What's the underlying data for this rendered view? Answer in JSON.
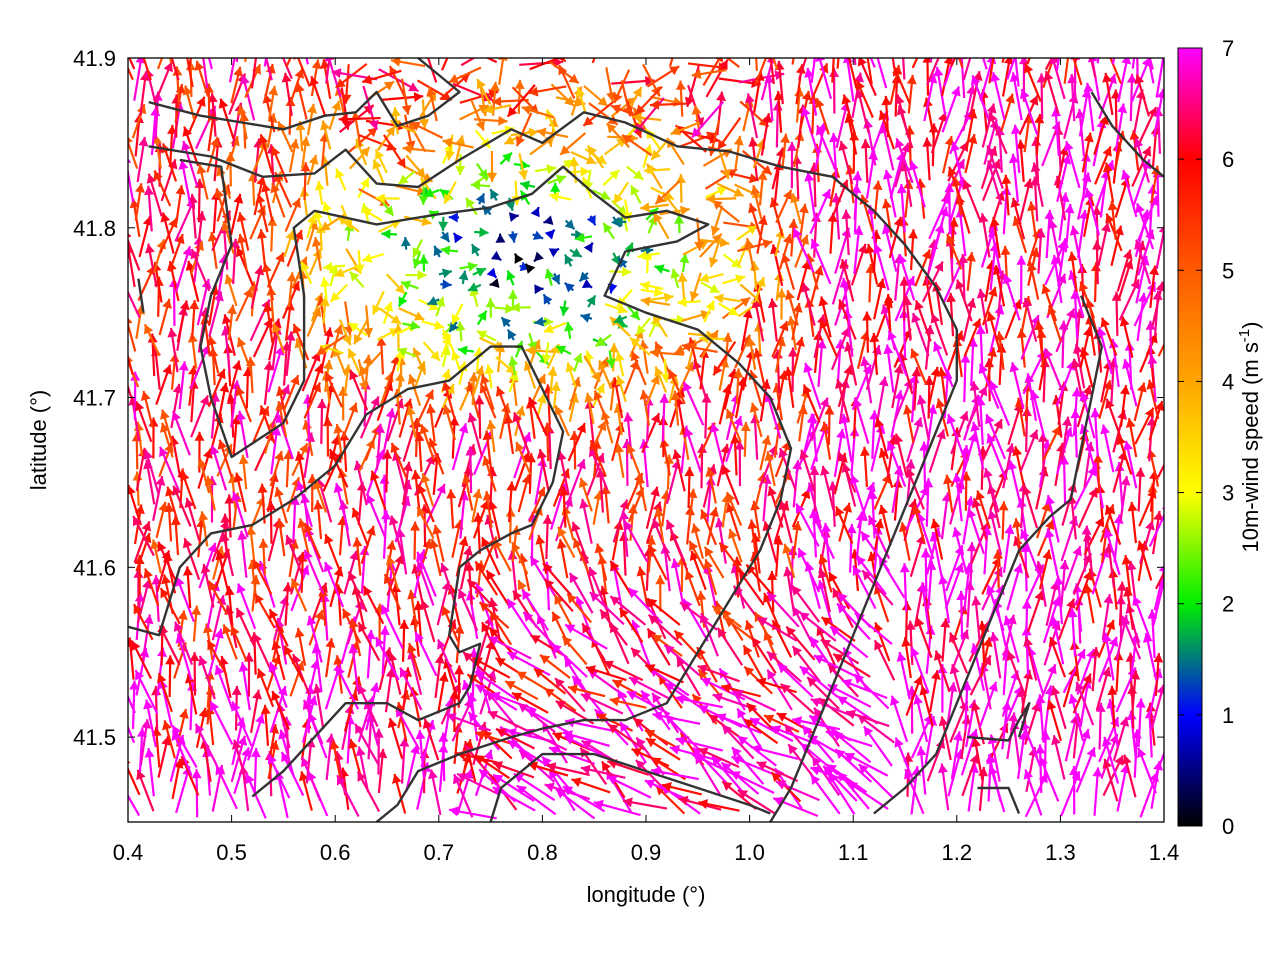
{
  "chart_data": {
    "type": "vector_field",
    "xlabel": "longitude (°)",
    "ylabel": "latitude (°)",
    "colorbar_label": "10m-wind speed (m s-1)",
    "colorbar_label_parts": {
      "main": "10m-wind speed (m s",
      "sup": "-1",
      "end": ")"
    },
    "xlim": [
      0.4,
      1.4
    ],
    "ylim": [
      41.45,
      41.9
    ],
    "x_ticks": [
      0.4,
      0.5,
      0.6,
      0.7,
      0.8,
      0.9,
      1.0,
      1.1,
      1.2,
      1.3,
      1.4
    ],
    "x_tick_labels": [
      "0.4",
      "0.5",
      "0.6",
      "0.7",
      "0.8",
      "0.9",
      "1.0",
      "1.1",
      "1.2",
      "1.3",
      "1.4"
    ],
    "y_ticks": [
      41.5,
      41.6,
      41.7,
      41.8,
      41.9
    ],
    "y_tick_labels": [
      "41.5",
      "41.6",
      "41.7",
      "41.8",
      "41.9"
    ],
    "colorbar_range": [
      0,
      7
    ],
    "colorbar_ticks": [
      0,
      1,
      2,
      3,
      4,
      5,
      6,
      7
    ],
    "colorbar_tick_labels": [
      "0",
      "1",
      "2",
      "3",
      "4",
      "5",
      "6",
      "7"
    ],
    "colormap": [
      {
        "value": 0,
        "color": "#000000"
      },
      {
        "value": 1,
        "color": "#0000ff"
      },
      {
        "value": 2,
        "color": "#00ee00"
      },
      {
        "value": 3,
        "color": "#ffff00"
      },
      {
        "value": 4,
        "color": "#ffa500"
      },
      {
        "value": 5,
        "color": "#ff5a00"
      },
      {
        "value": 6,
        "color": "#ff0000"
      },
      {
        "value": 7,
        "color": "#ff00ff"
      }
    ],
    "contour_color": "#333333",
    "contours": [
      [
        [
          0.42,
          41.874
        ],
        [
          0.47,
          41.866
        ],
        [
          0.51,
          41.862
        ],
        [
          0.55,
          41.858
        ],
        [
          0.59,
          41.866
        ],
        [
          0.62,
          41.868
        ],
        [
          0.64,
          41.88
        ],
        [
          0.66,
          41.86
        ],
        [
          0.69,
          41.866
        ],
        [
          0.72,
          41.88
        ],
        [
          0.7,
          41.89
        ],
        [
          0.68,
          41.9
        ]
      ],
      [
        [
          0.42,
          41.848
        ],
        [
          0.48,
          41.842
        ],
        [
          0.53,
          41.83
        ],
        [
          0.58,
          41.832
        ],
        [
          0.61,
          41.846
        ],
        [
          0.64,
          41.826
        ],
        [
          0.68,
          41.824
        ],
        [
          0.72,
          41.84
        ],
        [
          0.77,
          41.858
        ],
        [
          0.8,
          41.85
        ],
        [
          0.84,
          41.868
        ],
        [
          0.88,
          41.862
        ],
        [
          0.93,
          41.848
        ],
        [
          0.98,
          41.845
        ],
        [
          1.03,
          41.836
        ],
        [
          1.08,
          41.83
        ],
        [
          1.12,
          41.81
        ],
        [
          1.15,
          41.79
        ],
        [
          1.18,
          41.765
        ],
        [
          1.2,
          41.74
        ],
        [
          1.2,
          41.71
        ],
        [
          1.18,
          41.68
        ],
        [
          1.16,
          41.65
        ],
        [
          1.14,
          41.62
        ],
        [
          1.12,
          41.59
        ],
        [
          1.1,
          41.56
        ],
        [
          1.08,
          41.53
        ],
        [
          1.06,
          41.5
        ],
        [
          1.04,
          41.47
        ],
        [
          1.02,
          41.45
        ]
      ],
      [
        [
          0.45,
          41.84
        ],
        [
          0.49,
          41.836
        ],
        [
          0.5,
          41.79
        ],
        [
          0.48,
          41.76
        ],
        [
          0.47,
          41.73
        ],
        [
          0.48,
          41.7
        ],
        [
          0.5,
          41.665
        ],
        [
          0.55,
          41.685
        ],
        [
          0.57,
          41.71
        ],
        [
          0.57,
          41.76
        ],
        [
          0.56,
          41.8
        ],
        [
          0.58,
          41.81
        ],
        [
          0.64,
          41.802
        ],
        [
          0.7,
          41.808
        ],
        [
          0.75,
          41.812
        ],
        [
          0.79,
          41.82
        ],
        [
          0.82,
          41.836
        ],
        [
          0.85,
          41.82
        ],
        [
          0.88,
          41.806
        ],
        [
          0.92,
          41.81
        ],
        [
          0.96,
          41.802
        ],
        [
          0.93,
          41.792
        ],
        [
          0.88,
          41.786
        ],
        [
          0.86,
          41.76
        ],
        [
          0.9,
          41.75
        ],
        [
          0.95,
          41.74
        ],
        [
          0.99,
          41.72
        ],
        [
          1.02,
          41.7
        ],
        [
          1.04,
          41.67
        ],
        [
          1.03,
          41.64
        ],
        [
          1.01,
          41.61
        ],
        [
          0.98,
          41.58
        ],
        [
          0.95,
          41.55
        ],
        [
          0.92,
          41.52
        ],
        [
          0.88,
          41.51
        ],
        [
          0.84,
          41.51
        ],
        [
          0.8,
          41.505
        ],
        [
          0.77,
          41.5
        ],
        [
          0.72,
          41.49
        ],
        [
          0.68,
          41.48
        ],
        [
          0.66,
          41.46
        ],
        [
          0.64,
          41.45
        ]
      ],
      [
        [
          0.4,
          41.565
        ],
        [
          0.43,
          41.56
        ],
        [
          0.45,
          41.6
        ],
        [
          0.48,
          41.62
        ],
        [
          0.52,
          41.625
        ],
        [
          0.56,
          41.64
        ],
        [
          0.6,
          41.66
        ],
        [
          0.63,
          41.69
        ],
        [
          0.67,
          41.705
        ],
        [
          0.71,
          41.71
        ],
        [
          0.75,
          41.73
        ],
        [
          0.78,
          41.73
        ],
        [
          0.8,
          41.705
        ],
        [
          0.82,
          41.68
        ],
        [
          0.81,
          41.65
        ],
        [
          0.79,
          41.625
        ],
        [
          0.77,
          41.62
        ],
        [
          0.74,
          41.61
        ],
        [
          0.72,
          41.6
        ],
        [
          0.71,
          41.56
        ],
        [
          0.72,
          41.55
        ],
        [
          0.74,
          41.555
        ],
        [
          0.73,
          41.53
        ],
        [
          0.72,
          41.52
        ],
        [
          0.68,
          41.51
        ],
        [
          0.65,
          41.52
        ],
        [
          0.61,
          41.52
        ],
        [
          0.58,
          41.5
        ],
        [
          0.55,
          41.48
        ],
        [
          0.52,
          41.465
        ]
      ],
      [
        [
          0.75,
          41.45
        ],
        [
          0.76,
          41.47
        ],
        [
          0.8,
          41.49
        ],
        [
          0.85,
          41.49
        ],
        [
          0.9,
          41.48
        ],
        [
          0.95,
          41.47
        ],
        [
          1.0,
          41.46
        ],
        [
          1.02,
          41.455
        ]
      ],
      [
        [
          1.21,
          41.5
        ],
        [
          1.25,
          41.498
        ],
        [
          1.26,
          41.51
        ],
        [
          1.27,
          41.52
        ],
        [
          1.26,
          41.5
        ]
      ],
      [
        [
          1.32,
          41.76
        ],
        [
          1.34,
          41.73
        ],
        [
          1.33,
          41.7
        ],
        [
          1.32,
          41.67
        ],
        [
          1.31,
          41.64
        ],
        [
          1.29,
          41.63
        ],
        [
          1.26,
          41.61
        ],
        [
          1.24,
          41.58
        ],
        [
          1.22,
          41.55
        ],
        [
          1.2,
          41.52
        ],
        [
          1.18,
          41.49
        ],
        [
          1.15,
          41.47
        ],
        [
          1.12,
          41.455
        ]
      ],
      [
        [
          1.22,
          41.47
        ],
        [
          1.25,
          41.47
        ],
        [
          1.26,
          41.455
        ]
      ],
      [
        [
          1.33,
          41.88
        ],
        [
          1.35,
          41.86
        ],
        [
          1.38,
          41.84
        ],
        [
          1.4,
          41.83
        ]
      ],
      [
        [
          0.41,
          41.77
        ],
        [
          0.415,
          41.75
        ]
      ]
    ],
    "wind_field_regions": [
      {
        "region": "southwest",
        "speed_range": [
          5,
          7
        ],
        "direction": "north to north-northwest"
      },
      {
        "region": "south-central",
        "speed_range": [
          5.5,
          7
        ],
        "direction": "northwest"
      },
      {
        "region": "east",
        "speed_range": [
          5,
          7
        ],
        "direction": "north"
      },
      {
        "region": "north-central",
        "speed_range": [
          0.5,
          3.5
        ],
        "direction": "variable"
      }
    ]
  }
}
